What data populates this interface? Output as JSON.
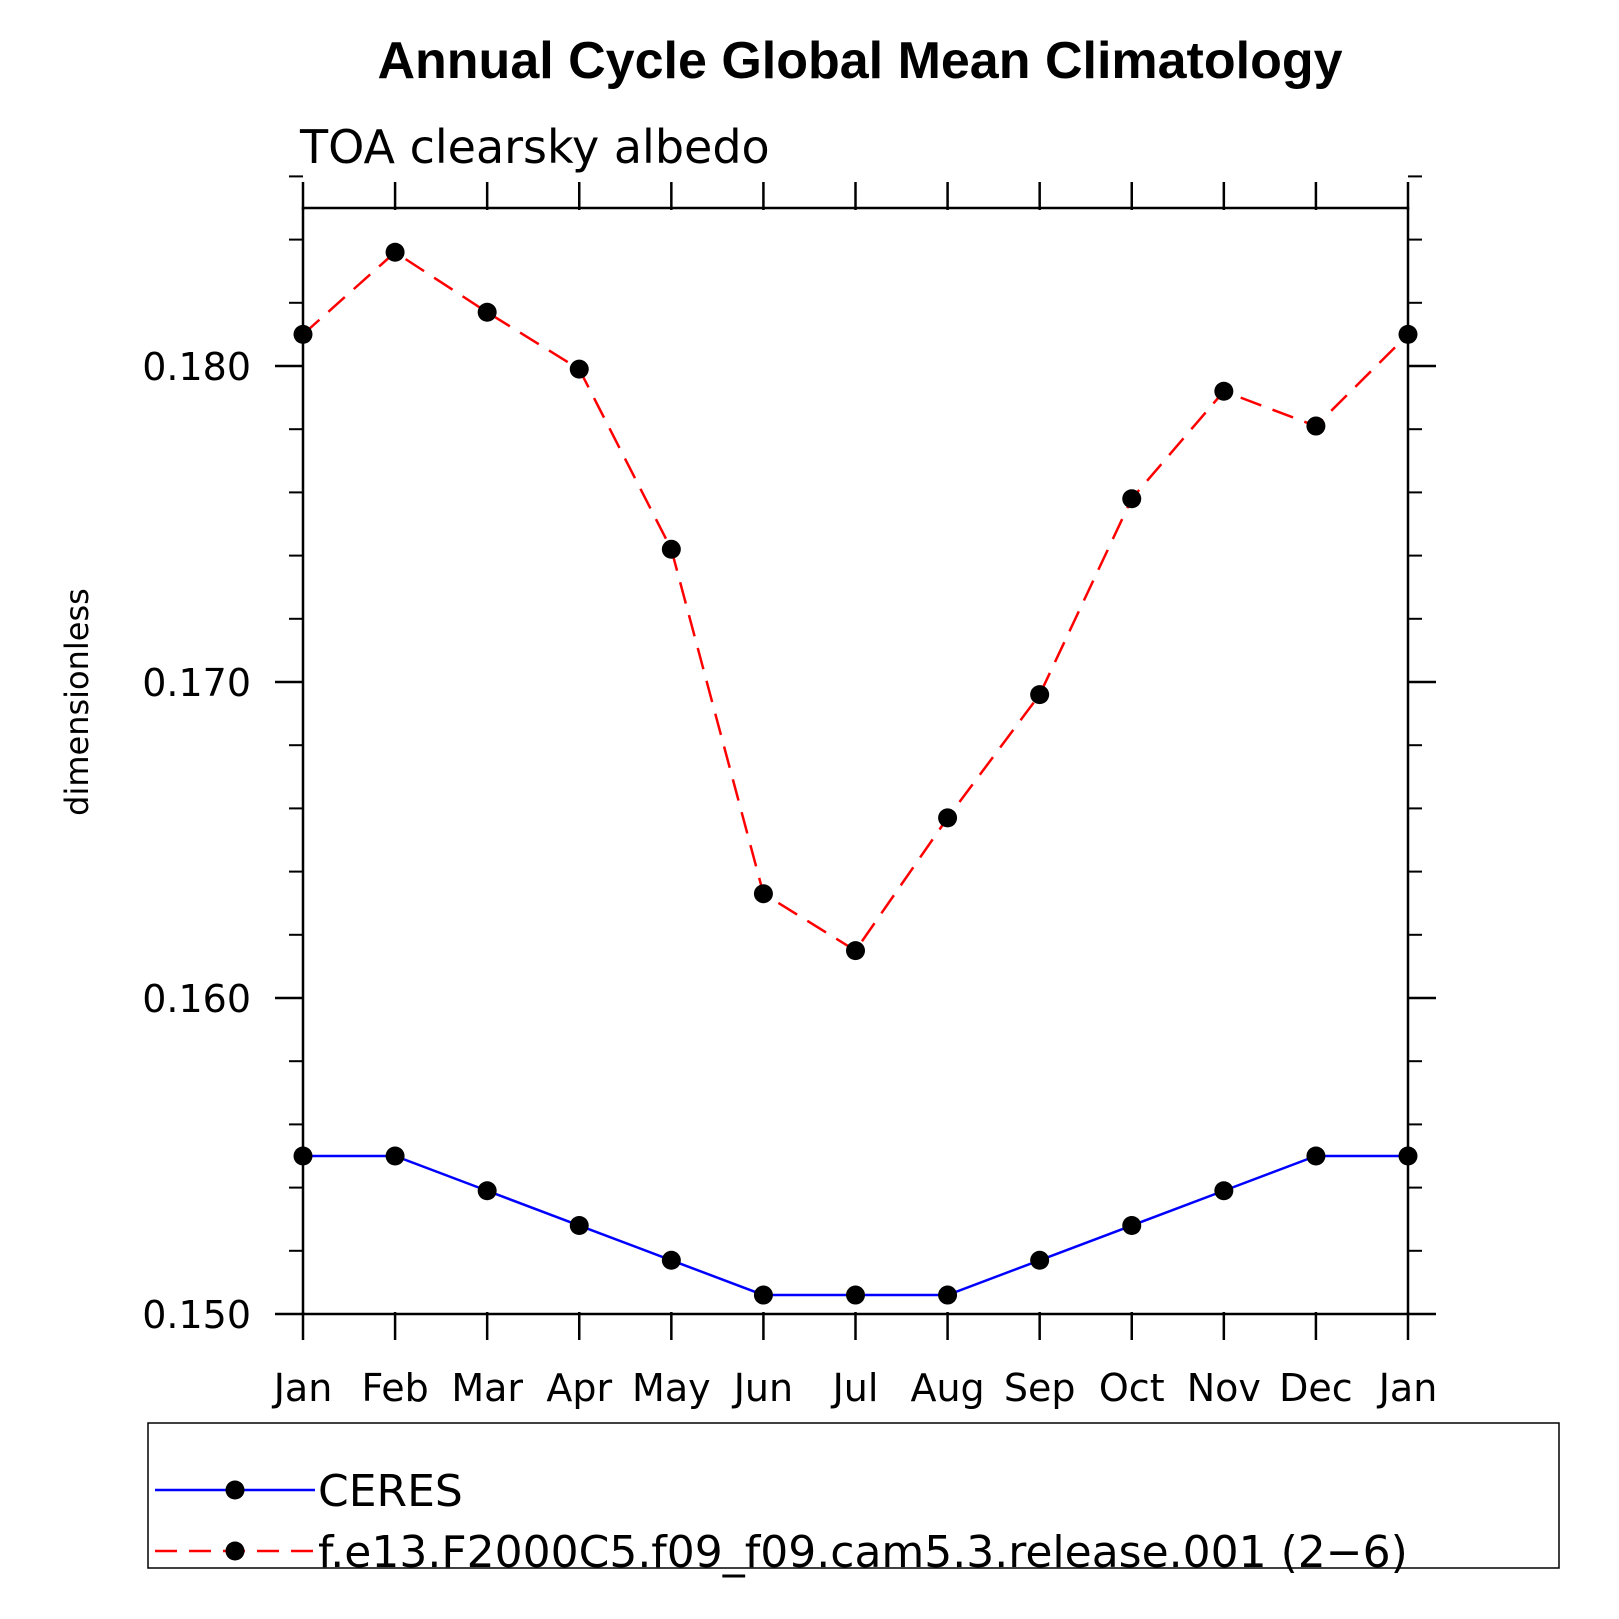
{
  "chart_data": {
    "type": "line",
    "title": "Annual Cycle Global Mean Climatology",
    "subtitle": "TOA clearsky albedo",
    "xlabel": "",
    "ylabel": "dimensionless",
    "categories": [
      "Jan",
      "Feb",
      "Mar",
      "Apr",
      "May",
      "Jun",
      "Jul",
      "Aug",
      "Sep",
      "Oct",
      "Nov",
      "Dec",
      "Jan"
    ],
    "ylim": [
      0.15,
      0.185
    ],
    "yticks": [
      0.15,
      0.16,
      0.17,
      0.18
    ],
    "ytick_labels": [
      "0.150",
      "0.160",
      "0.170",
      "0.180"
    ],
    "y_minor_step": 0.002,
    "grid": false,
    "legend_position": "bottom",
    "series": [
      {
        "name": "CERES",
        "color": "#0000ff",
        "line_style": "solid",
        "marker": "filled-circle",
        "values": [
          0.155,
          0.155,
          0.1539,
          0.1528,
          0.1517,
          0.1506,
          0.1506,
          0.1506,
          0.1517,
          0.1528,
          0.1539,
          0.155,
          0.155
        ]
      },
      {
        "name": "f.e13.F2000C5.f09_f09.cam5.3.release.001 (2−6)",
        "color": "#ff0000",
        "line_style": "dashed",
        "marker": "filled-circle",
        "values": [
          0.181,
          0.1836,
          0.1817,
          0.1799,
          0.1742,
          0.1633,
          0.1615,
          0.1657,
          0.1696,
          0.1758,
          0.1792,
          0.1781,
          0.181
        ]
      }
    ]
  }
}
